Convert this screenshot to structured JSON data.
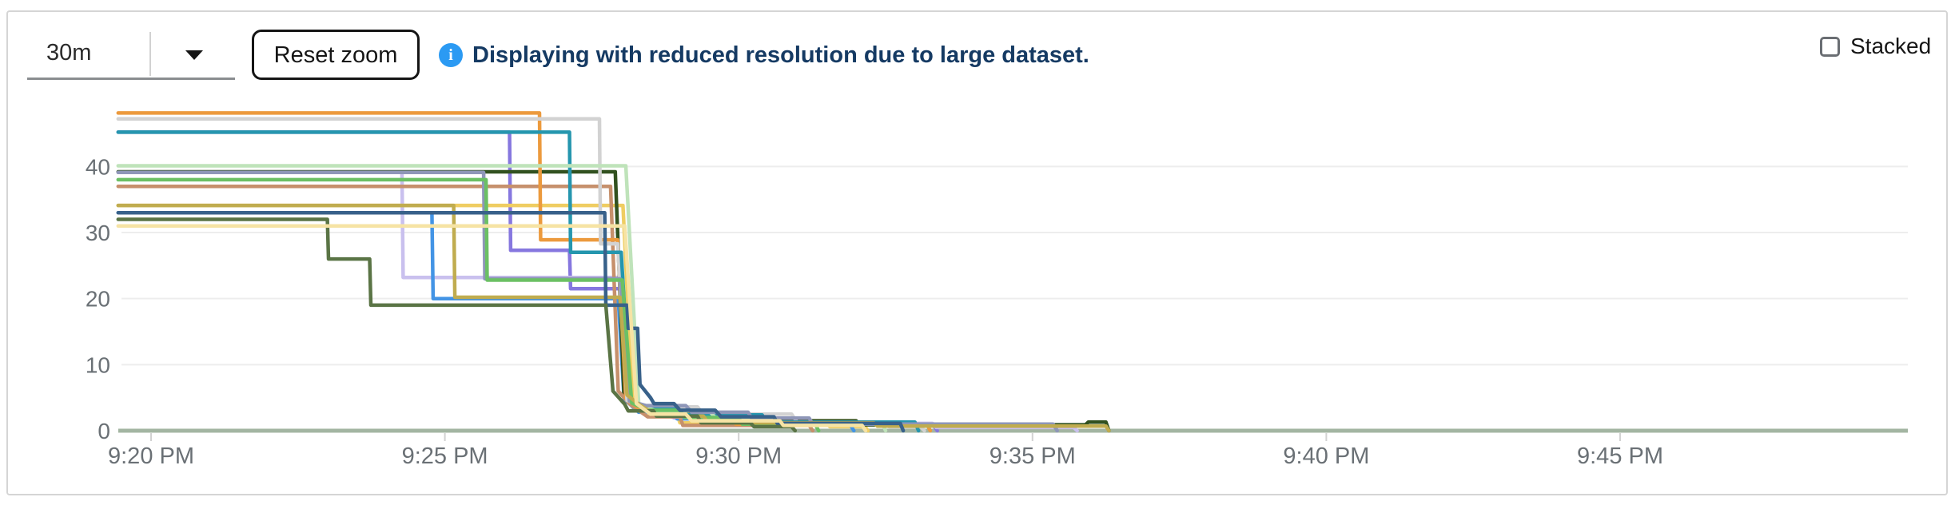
{
  "header": {
    "time_range_select": {
      "value": "30m"
    },
    "reset_zoom_label": "Reset zoom",
    "info_icon_glyph": "i",
    "info_icon_color": "#2b9af3",
    "info_message": "Displaying with reduced resolution due to large dataset.",
    "info_message_color": "#153a63",
    "stacked_label": "Stacked",
    "stacked_checked": false
  },
  "chart_data": {
    "type": "line",
    "step_interpolation": true,
    "title": "",
    "xlabel": "",
    "ylabel": "",
    "legend": "none",
    "grid": "horizontal",
    "x_unit": "minutes after 9:20 PM",
    "x_axis": {
      "tick_minutes": [
        0,
        5,
        10,
        15,
        20,
        25
      ],
      "tick_labels": [
        "9:20 PM",
        "9:25 PM",
        "9:30 PM",
        "9:35 PM",
        "9:40 PM",
        "9:45 PM"
      ],
      "range_minutes": [
        -0.56,
        29.9
      ],
      "axis_color": "#a3b5a2",
      "tick_color": "#d2d2d2",
      "label_color": "#6a7075"
    },
    "y_axis": {
      "ticks": [
        0,
        10,
        20,
        30,
        40
      ],
      "ylim": [
        0,
        48.5
      ],
      "gridline_color": "#ededed",
      "label_color": "#6a7075"
    },
    "series": [
      {
        "name": "purple",
        "color": "#8677df",
        "points": [
          [
            -0.56,
            45.2
          ],
          [
            6.1,
            45.2
          ],
          [
            6.12,
            27.3
          ],
          [
            7.12,
            27.3
          ],
          [
            7.14,
            21.5
          ],
          [
            8.0,
            21.5
          ],
          [
            8.2,
            4.0
          ],
          [
            8.5,
            3.0
          ],
          [
            8.9,
            2.0
          ],
          [
            9.7,
            2.0
          ],
          [
            9.75,
            1.0
          ],
          [
            13.3,
            1.0
          ],
          [
            13.38,
            0
          ]
        ]
      },
      {
        "name": "lavender",
        "color": "#c9c0ee",
        "points": [
          [
            -0.56,
            39.1
          ],
          [
            4.27,
            39.1
          ],
          [
            4.29,
            23.2
          ],
          [
            7.97,
            23.2
          ],
          [
            8.12,
            4.4
          ],
          [
            8.35,
            3.2
          ],
          [
            9.2,
            3.2
          ],
          [
            9.28,
            2.2
          ],
          [
            10.3,
            2.2
          ],
          [
            10.36,
            1.1
          ],
          [
            13.3,
            1.1
          ],
          [
            13.36,
            0.5
          ],
          [
            15.7,
            0.5
          ],
          [
            15.76,
            0
          ]
        ]
      },
      {
        "name": "gold",
        "color": "#efcd62",
        "points": [
          [
            -0.56,
            34.1
          ],
          [
            8.03,
            34.1
          ],
          [
            8.2,
            3.5
          ],
          [
            8.45,
            2.5
          ],
          [
            8.95,
            2.5
          ],
          [
            9.0,
            1.2
          ],
          [
            11.5,
            1.2
          ],
          [
            11.55,
            0.6
          ],
          [
            12.15,
            0.6
          ],
          [
            12.2,
            0
          ]
        ]
      },
      {
        "name": "blue",
        "color": "#4394e5",
        "points": [
          [
            -0.56,
            33.0
          ],
          [
            4.78,
            33.0
          ],
          [
            4.8,
            20.0
          ],
          [
            7.95,
            20.0
          ],
          [
            8.05,
            4.8
          ],
          [
            8.3,
            2.8
          ],
          [
            8.9,
            2.8
          ],
          [
            8.95,
            1.8
          ],
          [
            9.6,
            1.8
          ],
          [
            9.65,
            0.9
          ],
          [
            11.9,
            0.9
          ],
          [
            11.96,
            0
          ]
        ]
      },
      {
        "name": "forest",
        "color": "#31511f",
        "points": [
          [
            -0.56,
            39.2
          ],
          [
            7.9,
            39.2
          ],
          [
            8.05,
            5.0
          ],
          [
            8.25,
            3.6
          ],
          [
            8.8,
            3.6
          ],
          [
            8.85,
            2.6
          ],
          [
            9.9,
            2.6
          ],
          [
            9.95,
            1.5
          ],
          [
            12.0,
            1.5
          ],
          [
            12.05,
            0.9
          ],
          [
            15.9,
            0.9
          ],
          [
            15.95,
            1.3
          ],
          [
            16.25,
            1.3
          ],
          [
            16.3,
            0
          ]
        ]
      },
      {
        "name": "tan",
        "color": "#c6906c",
        "points": [
          [
            -0.56,
            37.0
          ],
          [
            7.82,
            37.0
          ],
          [
            7.95,
            6.0
          ],
          [
            8.15,
            4.0
          ],
          [
            8.45,
            2.1
          ],
          [
            9.0,
            2.1
          ],
          [
            9.05,
            0.8
          ],
          [
            11.2,
            0.8
          ],
          [
            11.26,
            0
          ]
        ]
      },
      {
        "name": "orange",
        "color": "#ec9a3d",
        "points": [
          [
            -0.56,
            48.1
          ],
          [
            6.61,
            48.1
          ],
          [
            6.63,
            28.9
          ],
          [
            7.94,
            28.9
          ],
          [
            8.08,
            5.0
          ],
          [
            8.3,
            3.4
          ],
          [
            8.75,
            3.4
          ],
          [
            8.8,
            2.3
          ],
          [
            9.9,
            2.3
          ],
          [
            9.95,
            1.0
          ],
          [
            13.2,
            1.0
          ],
          [
            13.26,
            0
          ]
        ]
      },
      {
        "name": "gray",
        "color": "#d2d2d2",
        "points": [
          [
            -0.56,
            47.2
          ],
          [
            7.63,
            47.2
          ],
          [
            7.65,
            28.3
          ],
          [
            7.94,
            28.3
          ],
          [
            8.1,
            4.6
          ],
          [
            8.4,
            3.6
          ],
          [
            9.3,
            3.6
          ],
          [
            9.4,
            2.5
          ],
          [
            10.9,
            2.5
          ],
          [
            11.0,
            1.2
          ],
          [
            12.5,
            1.2
          ],
          [
            12.56,
            0.6
          ],
          [
            13.1,
            0.6
          ],
          [
            13.16,
            0
          ]
        ]
      },
      {
        "name": "teal",
        "color": "#2596ae",
        "points": [
          [
            -0.56,
            45.2
          ],
          [
            7.12,
            45.2
          ],
          [
            7.14,
            27.0
          ],
          [
            8.0,
            27.0
          ],
          [
            8.15,
            4.9
          ],
          [
            8.4,
            3.4
          ],
          [
            8.95,
            3.4
          ],
          [
            9.05,
            2.4
          ],
          [
            10.4,
            2.4
          ],
          [
            10.46,
            1.3
          ],
          [
            13.0,
            1.3
          ],
          [
            13.06,
            0
          ]
        ]
      },
      {
        "name": "pale-green",
        "color": "#bfe3ba",
        "points": [
          [
            -0.56,
            40.1
          ],
          [
            8.08,
            40.1
          ],
          [
            8.3,
            3.9
          ],
          [
            8.6,
            3.0
          ],
          [
            9.5,
            3.0
          ],
          [
            9.6,
            2.0
          ],
          [
            10.6,
            2.0
          ],
          [
            10.66,
            1.0
          ],
          [
            12.45,
            1.0
          ],
          [
            12.5,
            0
          ]
        ]
      },
      {
        "name": "slate",
        "color": "#8e96b8",
        "points": [
          [
            -0.56,
            39.1
          ],
          [
            5.66,
            39.1
          ],
          [
            5.68,
            23.0
          ],
          [
            7.98,
            23.0
          ],
          [
            8.14,
            4.5
          ],
          [
            8.42,
            3.8
          ],
          [
            9.1,
            3.8
          ],
          [
            9.2,
            2.8
          ],
          [
            10.16,
            2.8
          ],
          [
            10.22,
            1.9
          ],
          [
            11.2,
            1.9
          ],
          [
            11.26,
            1.0
          ],
          [
            15.35,
            1.0
          ],
          [
            15.42,
            0
          ]
        ]
      },
      {
        "name": "green",
        "color": "#6bc064",
        "points": [
          [
            -0.56,
            38.0
          ],
          [
            5.7,
            38.0
          ],
          [
            5.72,
            22.8
          ],
          [
            8.02,
            22.8
          ],
          [
            8.18,
            4.2
          ],
          [
            8.45,
            3.1
          ],
          [
            9.0,
            3.1
          ],
          [
            9.08,
            2.0
          ],
          [
            10.0,
            2.0
          ],
          [
            10.06,
            1.0
          ],
          [
            11.3,
            1.0
          ],
          [
            11.36,
            0
          ]
        ]
      },
      {
        "name": "khaki",
        "color": "#c0ac4f",
        "points": [
          [
            -0.56,
            34.1
          ],
          [
            5.15,
            34.1
          ],
          [
            5.17,
            20.2
          ],
          [
            7.98,
            20.2
          ],
          [
            8.1,
            5.4
          ],
          [
            8.3,
            4.0
          ],
          [
            8.62,
            2.2
          ],
          [
            9.4,
            2.2
          ],
          [
            9.48,
            1.2
          ],
          [
            12.3,
            1.2
          ],
          [
            12.36,
            0.7
          ],
          [
            16.25,
            0.7
          ],
          [
            16.3,
            0
          ]
        ]
      },
      {
        "name": "navy",
        "color": "#38618a",
        "points": [
          [
            -0.56,
            33.0
          ],
          [
            7.72,
            33.0
          ],
          [
            7.74,
            19.0
          ],
          [
            8.1,
            19.0
          ],
          [
            8.12,
            15.5
          ],
          [
            8.28,
            15.5
          ],
          [
            8.32,
            7.0
          ],
          [
            8.5,
            5.0
          ],
          [
            8.56,
            4.1
          ],
          [
            8.9,
            4.1
          ],
          [
            9.0,
            3.1
          ],
          [
            9.6,
            3.1
          ],
          [
            9.7,
            2.1
          ],
          [
            10.6,
            2.1
          ],
          [
            10.66,
            1.1
          ],
          [
            12.75,
            1.1
          ],
          [
            12.8,
            0
          ]
        ]
      },
      {
        "name": "dark-green",
        "color": "#5a7445",
        "points": [
          [
            -0.56,
            32.0
          ],
          [
            3.0,
            32.0
          ],
          [
            3.02,
            26.0
          ],
          [
            3.72,
            26.0
          ],
          [
            3.74,
            19.0
          ],
          [
            7.74,
            19.0
          ],
          [
            7.86,
            6.0
          ],
          [
            8.06,
            4.0
          ],
          [
            8.12,
            3.0
          ],
          [
            8.55,
            3.0
          ],
          [
            8.6,
            2.2
          ],
          [
            9.3,
            2.2
          ],
          [
            9.36,
            1.2
          ],
          [
            10.2,
            1.2
          ],
          [
            10.26,
            0.6
          ],
          [
            10.9,
            0.6
          ],
          [
            10.96,
            0
          ]
        ]
      },
      {
        "name": "pale-yellow",
        "color": "#f6e3a4",
        "points": [
          [
            -0.56,
            31.0
          ],
          [
            8.06,
            31.0
          ],
          [
            8.26,
            4.1
          ],
          [
            8.5,
            2.5
          ],
          [
            9.1,
            2.5
          ],
          [
            9.2,
            1.5
          ],
          [
            10.7,
            1.5
          ],
          [
            10.76,
            0.8
          ],
          [
            12.1,
            0.8
          ],
          [
            12.16,
            0
          ]
        ]
      }
    ]
  }
}
